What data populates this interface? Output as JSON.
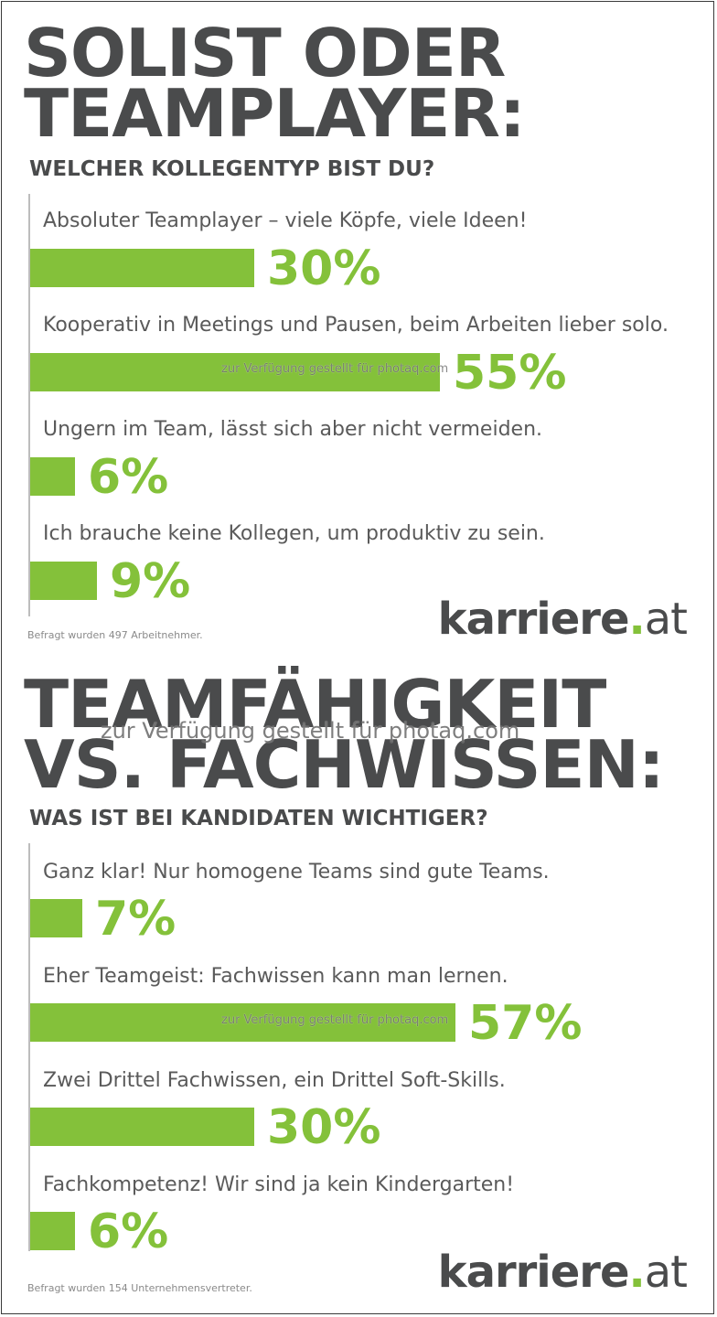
{
  "chart_data": [
    {
      "type": "bar",
      "title_lines": [
        "SOLIST ODER",
        "TEAMPLAYER:"
      ],
      "subtitle": "WELCHER KOLLEGENTYP BIST DU?",
      "categories": [
        "Absoluter Teamplayer – viele Köpfe, viele Ideen!",
        "Kooperativ in Meetings und Pausen, beim Arbeiten lieber solo.",
        "Ungern im Team, lässt sich aber nicht vermeiden.",
        "Ich brauche keine Kollegen, um produktiv zu sein."
      ],
      "values": [
        30,
        55,
        6,
        9
      ],
      "value_labels": [
        "30%",
        "55%",
        "6%",
        "9%"
      ],
      "orientation": "horizontal",
      "xlim": [
        0,
        100
      ],
      "footnote": "Befragt wurden 497 Arbeitnehmer."
    },
    {
      "type": "bar",
      "title_lines": [
        "TEAMFÄHIGKEIT",
        "VS. FACHWISSEN:"
      ],
      "subtitle": "WAS IST BEI KANDIDATEN WICHTIGER?",
      "categories": [
        "Ganz klar! Nur homogene Teams sind gute Teams.",
        "Eher Teamgeist: Fachwissen kann man lernen.",
        "Zwei Drittel Fachwissen, ein Drittel Soft-Skills.",
        "Fachkompetenz! Wir sind ja kein Kindergarten!"
      ],
      "values": [
        7,
        57,
        30,
        6
      ],
      "value_labels": [
        "7%",
        "57%",
        "30%",
        "6%"
      ],
      "orientation": "horizontal",
      "xlim": [
        0,
        100
      ],
      "footnote": "Befragt wurden 154 Unternehmensvertreter."
    }
  ],
  "logo": {
    "name": "karriere",
    "dot": ".",
    "tld": "at"
  },
  "watermark": "zur Verfügung gestellt für photaq.com",
  "colors": {
    "accent": "#84c13a",
    "text": "#4a4b4c",
    "label": "#5a5a5a"
  }
}
